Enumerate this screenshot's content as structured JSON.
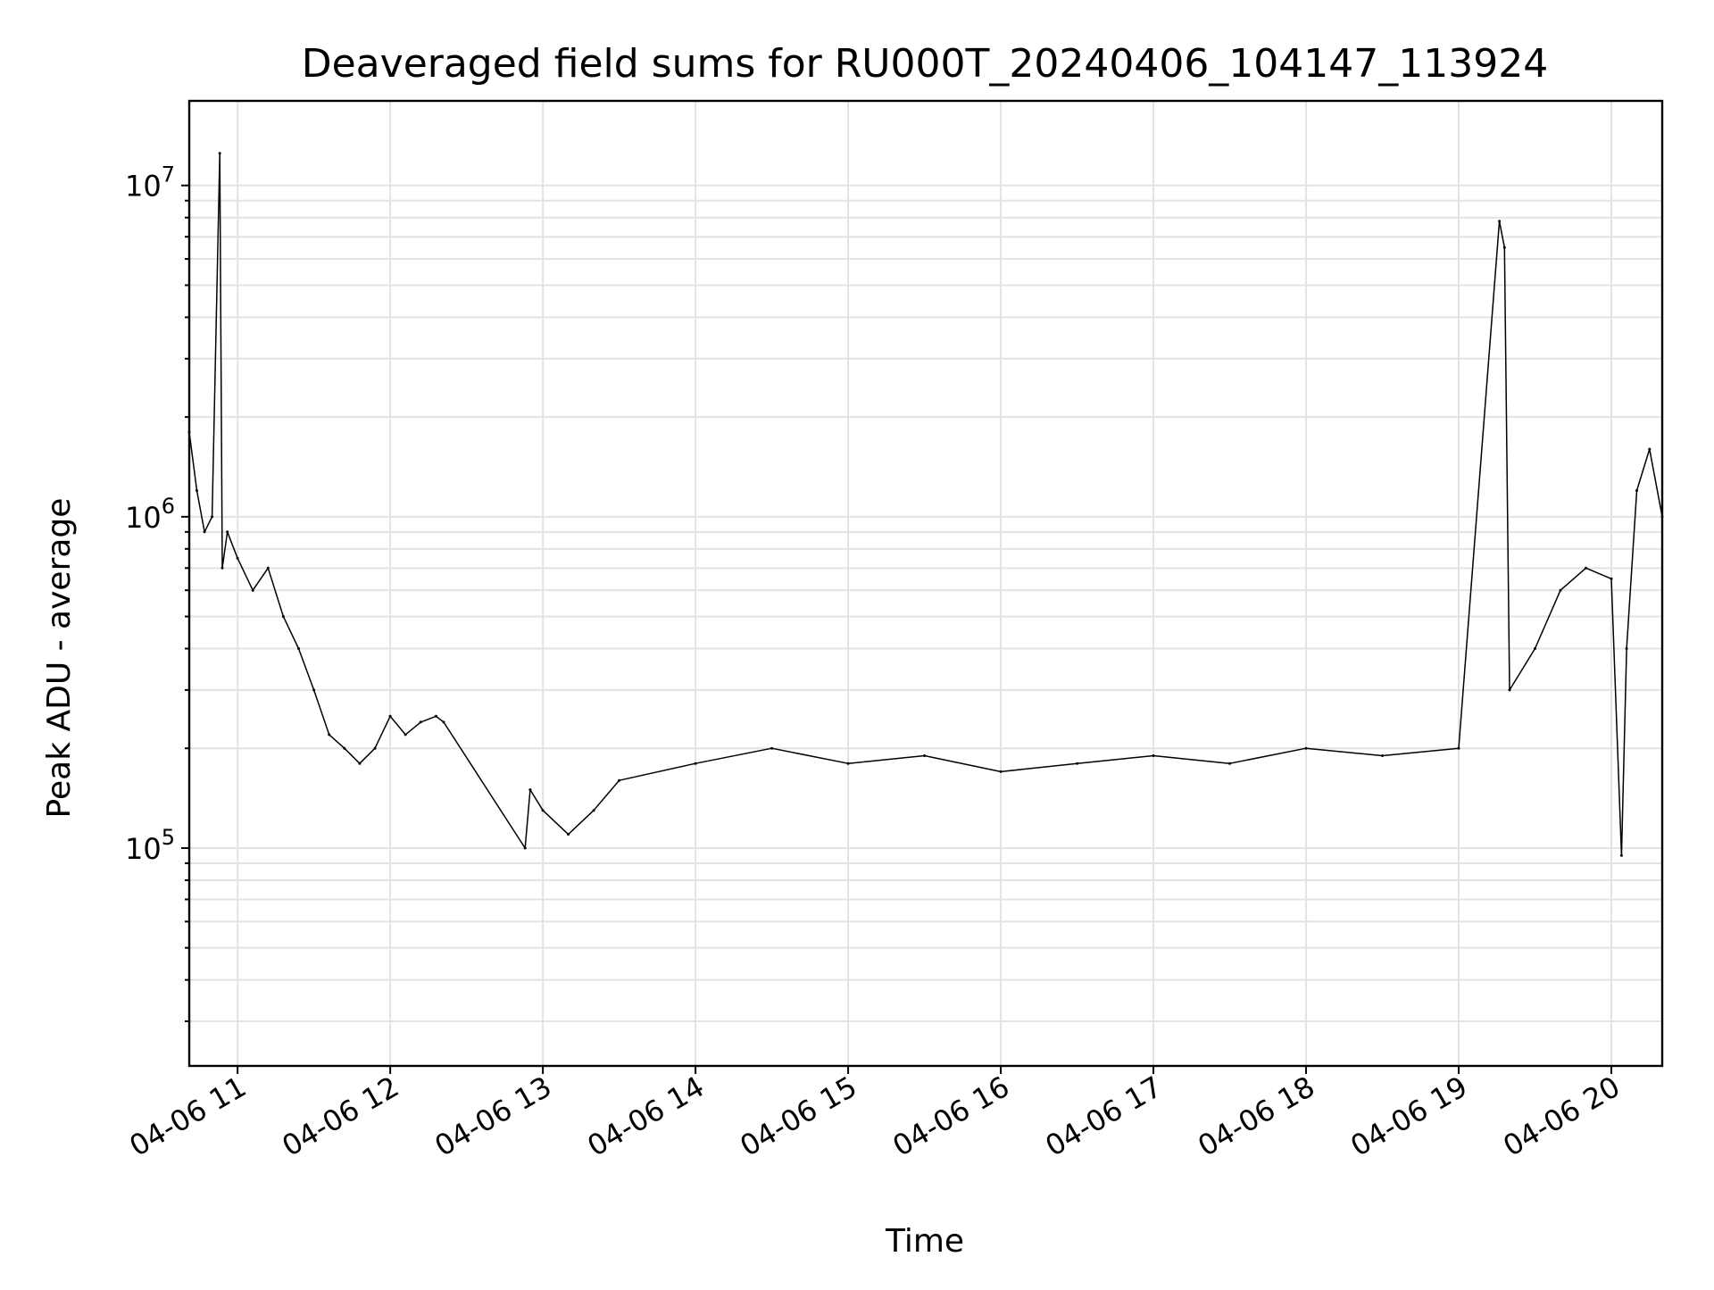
{
  "chart_data": {
    "type": "line",
    "title": "Deaveraged field sums for RU000T_20240406_104147_113924",
    "xlabel": "Time",
    "ylabel": "Peak ADU - average",
    "yscale": "log",
    "grid": true,
    "line_color": "#000000",
    "grid_color": "#e3e3e3",
    "xlim": [
      "2024-04-06 10:41",
      "2024-04-06 20:20"
    ],
    "ylim": [
      22000,
      18000000
    ],
    "xticks": [
      {
        "label": "04-06 11",
        "time": "2024-04-06 11:00"
      },
      {
        "label": "04-06 12",
        "time": "2024-04-06 12:00"
      },
      {
        "label": "04-06 13",
        "time": "2024-04-06 13:00"
      },
      {
        "label": "04-06 14",
        "time": "2024-04-06 14:00"
      },
      {
        "label": "04-06 15",
        "time": "2024-04-06 15:00"
      },
      {
        "label": "04-06 16",
        "time": "2024-04-06 16:00"
      },
      {
        "label": "04-06 17",
        "time": "2024-04-06 17:00"
      },
      {
        "label": "04-06 18",
        "time": "2024-04-06 18:00"
      },
      {
        "label": "04-06 19",
        "time": "2024-04-06 19:00"
      },
      {
        "label": "04-06 20",
        "time": "2024-04-06 20:00"
      }
    ],
    "yticks": [
      {
        "mantissa": "10",
        "exponent": "5",
        "value": 100000
      },
      {
        "mantissa": "10",
        "exponent": "6",
        "value": 1000000
      },
      {
        "mantissa": "10",
        "exponent": "7",
        "value": 10000000
      }
    ],
    "series": [
      {
        "points": [
          [
            "2024-04-06 10:41",
            1800000
          ],
          [
            "2024-04-06 10:44",
            1200000
          ],
          [
            "2024-04-06 10:47",
            900000
          ],
          [
            "2024-04-06 10:50",
            1000000
          ],
          [
            "2024-04-06 10:53",
            12500000
          ],
          [
            "2024-04-06 10:54",
            700000
          ],
          [
            "2024-04-06 10:56",
            900000
          ],
          [
            "2024-04-06 11:00",
            750000
          ],
          [
            "2024-04-06 11:06",
            600000
          ],
          [
            "2024-04-06 11:12",
            700000
          ],
          [
            "2024-04-06 11:18",
            500000
          ],
          [
            "2024-04-06 11:24",
            400000
          ],
          [
            "2024-04-06 11:30",
            300000
          ],
          [
            "2024-04-06 11:36",
            220000
          ],
          [
            "2024-04-06 11:42",
            200000
          ],
          [
            "2024-04-06 11:48",
            180000
          ],
          [
            "2024-04-06 11:54",
            200000
          ],
          [
            "2024-04-06 12:00",
            250000
          ],
          [
            "2024-04-06 12:06",
            220000
          ],
          [
            "2024-04-06 12:12",
            240000
          ],
          [
            "2024-04-06 12:18",
            250000
          ],
          [
            "2024-04-06 12:21",
            240000
          ],
          [
            "2024-04-06 12:53",
            100000
          ],
          [
            "2024-04-06 12:55",
            150000
          ],
          [
            "2024-04-06 13:00",
            130000
          ],
          [
            "2024-04-06 13:10",
            110000
          ],
          [
            "2024-04-06 13:20",
            130000
          ],
          [
            "2024-04-06 13:30",
            160000
          ],
          [
            "2024-04-06 14:00",
            180000
          ],
          [
            "2024-04-06 14:30",
            200000
          ],
          [
            "2024-04-06 15:00",
            180000
          ],
          [
            "2024-04-06 15:30",
            190000
          ],
          [
            "2024-04-06 16:00",
            170000
          ],
          [
            "2024-04-06 16:30",
            180000
          ],
          [
            "2024-04-06 17:00",
            190000
          ],
          [
            "2024-04-06 17:30",
            180000
          ],
          [
            "2024-04-06 18:00",
            200000
          ],
          [
            "2024-04-06 18:30",
            190000
          ],
          [
            "2024-04-06 19:00",
            200000
          ],
          [
            "2024-04-06 19:16",
            7800000
          ],
          [
            "2024-04-06 19:18",
            6500000
          ],
          [
            "2024-04-06 19:20",
            300000
          ],
          [
            "2024-04-06 19:30",
            400000
          ],
          [
            "2024-04-06 19:40",
            600000
          ],
          [
            "2024-04-06 19:50",
            700000
          ],
          [
            "2024-04-06 20:00",
            650000
          ],
          [
            "2024-04-06 20:04",
            95000
          ],
          [
            "2024-04-06 20:06",
            400000
          ],
          [
            "2024-04-06 20:10",
            1200000
          ],
          [
            "2024-04-06 20:15",
            1600000
          ],
          [
            "2024-04-06 20:20",
            1000000
          ]
        ]
      }
    ]
  }
}
